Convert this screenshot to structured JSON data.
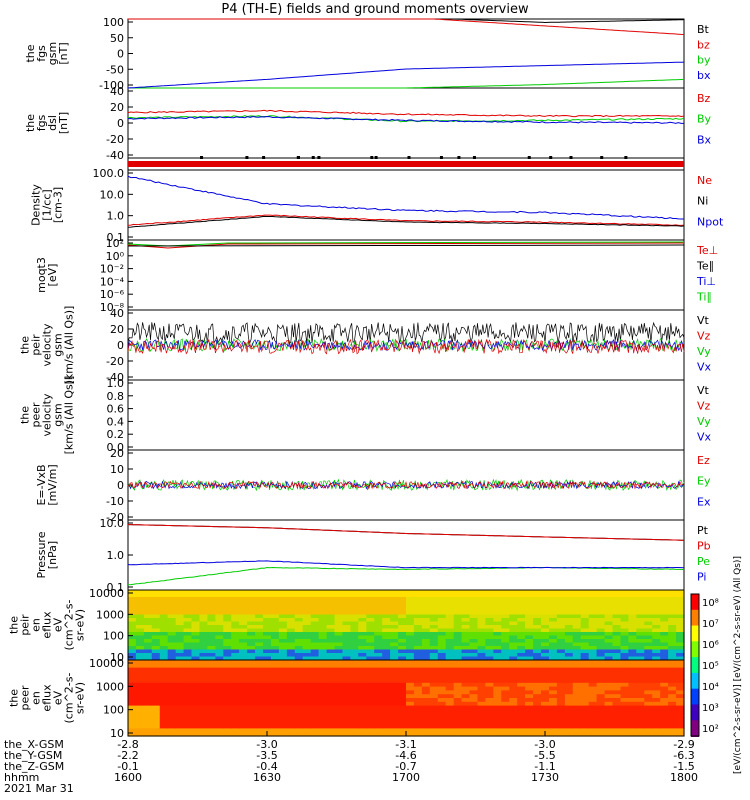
{
  "title": "P4 (TH-E) fields and ground moments overview",
  "panels": [
    {
      "id": "bgsm",
      "ylabel": [
        "the",
        "fgs",
        "gsm",
        "[nT]"
      ],
      "ticks": [
        "100",
        "50",
        "0",
        "-50",
        "-100"
      ],
      "legend": [
        {
          "t": "Bt",
          "c": "#000000"
        },
        {
          "t": "bz",
          "c": "#e00000"
        },
        {
          "t": "by",
          "c": "#00cc00"
        },
        {
          "t": "bx",
          "c": "#0000dd"
        }
      ]
    },
    {
      "id": "bdsl",
      "ylabel": [
        "the",
        "fgs",
        "dsl",
        "[nT]"
      ],
      "ticks": [
        "40",
        "20",
        "0",
        "-20",
        "-40"
      ],
      "legend": [
        {
          "t": "Bz",
          "c": "#e00000"
        },
        {
          "t": "By",
          "c": "#00cc00"
        },
        {
          "t": "Bx",
          "c": "#0000dd"
        }
      ]
    },
    {
      "id": "mode",
      "ylabel": [],
      "ticks": [],
      "legend": []
    },
    {
      "id": "dens",
      "ylabel": [
        "Density",
        "[1/cc]",
        "[cm-3]"
      ],
      "ticks": [
        "100.0",
        "10.0",
        "1.0",
        "0.1"
      ],
      "legend": [
        {
          "t": "Ne",
          "c": "#e00000"
        },
        {
          "t": "Ni",
          "c": "#000000"
        },
        {
          "t": "Npot",
          "c": "#0000dd"
        }
      ]
    },
    {
      "id": "temp",
      "ylabel": [
        "moqt3",
        "[eV]"
      ],
      "ticks": [
        "10²",
        "10⁰",
        "10⁻²",
        "10⁻⁴",
        "10⁻⁶",
        "10⁻⁸"
      ],
      "legend": [
        {
          "t": "Te⊥",
          "c": "#e00000"
        },
        {
          "t": "Te∥",
          "c": "#000000"
        },
        {
          "t": "Ti⊥",
          "c": "#0000dd"
        },
        {
          "t": "Ti∥",
          "c": "#00cc00"
        }
      ]
    },
    {
      "id": "vi",
      "ylabel": [
        "the",
        "peir",
        "velocity",
        "gsm",
        "[km/s (All Qs)]"
      ],
      "ticks": [
        "40",
        "20",
        "0",
        "-20",
        "-40"
      ],
      "legend": [
        {
          "t": "Vt",
          "c": "#000000"
        },
        {
          "t": "Vz",
          "c": "#e00000"
        },
        {
          "t": "Vy",
          "c": "#00cc00"
        },
        {
          "t": "Vx",
          "c": "#0000dd"
        }
      ]
    },
    {
      "id": "ve",
      "ylabel": [
        "the",
        "peer",
        "velocity",
        "gsm",
        "[km/s (All Qs)]"
      ],
      "ticks": [
        "1.0",
        "0.8",
        "0.6",
        "0.4",
        "0.2",
        "0.0"
      ],
      "legend": [
        {
          "t": "Vt",
          "c": "#000000"
        },
        {
          "t": "Vz",
          "c": "#e00000"
        },
        {
          "t": "Vy",
          "c": "#00cc00"
        },
        {
          "t": "Vx",
          "c": "#0000dd"
        }
      ]
    },
    {
      "id": "efield",
      "ylabel": [
        "E=-VxB",
        "[mV/m]"
      ],
      "ticks": [
        "20",
        "10",
        "0",
        "-10",
        "-20"
      ],
      "legend": [
        {
          "t": "Ez",
          "c": "#e00000"
        },
        {
          "t": "Ey",
          "c": "#00cc00"
        },
        {
          "t": "Ex",
          "c": "#0000dd"
        }
      ]
    },
    {
      "id": "press",
      "ylabel": [
        "Pressure",
        "[nPa]"
      ],
      "ticks": [
        "10.0",
        "1.0",
        "0.1"
      ],
      "legend": [
        {
          "t": "Pt",
          "c": "#000000"
        },
        {
          "t": "Pb",
          "c": "#e00000"
        },
        {
          "t": "Pe",
          "c": "#00cc00"
        },
        {
          "t": "Pi",
          "c": "#0000dd"
        }
      ]
    },
    {
      "id": "ispec",
      "ylabel": [
        "the",
        "peir",
        "en",
        "eflux",
        "eV",
        "(cm^2-s-",
        "sr-eV)"
      ],
      "ticks": [
        "10000",
        "1000",
        "100",
        "10"
      ],
      "legend": []
    },
    {
      "id": "espec",
      "ylabel": [
        "the",
        "peer",
        "en",
        "eflux",
        "eV",
        "(cm^2-s-",
        "sr-eV)"
      ],
      "ticks": [
        "10000",
        "1000",
        "100",
        "10"
      ],
      "legend": []
    }
  ],
  "colorbar": {
    "ticks": [
      "10⁸",
      "10⁷",
      "10⁶",
      "10⁵",
      "10⁴",
      "10³",
      "10²"
    ],
    "label": "[eV/(cm^2-s-sr-eV)] [eV/(cm^2-s-sr-eV) (All Qs)]"
  },
  "xaxis": {
    "rows": [
      {
        "label": "the_X-GSM",
        "vals": [
          "-2.8",
          "-3.0",
          "-3.1",
          "-3.0",
          "-2.9"
        ]
      },
      {
        "label": "the_Y-GSM",
        "vals": [
          "-2.2",
          "-3.5",
          "-4.6",
          "-5.5",
          "-6.3"
        ]
      },
      {
        "label": "the_Z-GSM",
        "vals": [
          "-0.1",
          "-0.4",
          "-0.7",
          "-1.1",
          "-1.5"
        ]
      },
      {
        "label": "hhmm",
        "vals": [
          "1600",
          "1630",
          "1700",
          "1730",
          "1800"
        ]
      }
    ],
    "date": "2021 Mar 31"
  },
  "chart_data": {
    "type": "line",
    "title": "P4 (TH-E) fields and ground moments overview",
    "x": [
      "1600",
      "1630",
      "1700",
      "1730",
      "1800"
    ],
    "series": [
      {
        "name": "Bt",
        "values": [
          150,
          125,
          105,
          90,
          98
        ]
      },
      {
        "name": "bz",
        "values": [
          150,
          125,
          105,
          80,
          55
        ]
      },
      {
        "name": "by",
        "values": [
          -105,
          -110,
          -100,
          -90,
          -75
        ]
      },
      {
        "name": "bx",
        "values": [
          -100,
          -75,
          -45,
          -35,
          -25
        ]
      },
      {
        "name": "Bz",
        "values": [
          12,
          14,
          10,
          8,
          8
        ]
      },
      {
        "name": "By",
        "values": [
          6,
          8,
          2,
          3,
          5
        ]
      },
      {
        "name": "Bx",
        "values": [
          5,
          7,
          3,
          1,
          0
        ]
      },
      {
        "name": "Ne",
        "values": [
          0.5,
          1.5,
          0.8,
          0.7,
          0.5
        ]
      },
      {
        "name": "Ni",
        "values": [
          0.4,
          1.3,
          0.7,
          0.6,
          0.45
        ]
      },
      {
        "name": "Npot",
        "values": [
          100,
          5,
          2.5,
          2,
          1
        ]
      },
      {
        "name": "Pt",
        "values": [
          25,
          18,
          10,
          7,
          5
        ]
      },
      {
        "name": "Pb",
        "values": [
          25,
          18,
          10,
          7,
          5
        ]
      },
      {
        "name": "Pe",
        "values": [
          0.05,
          0.3,
          0.25,
          0.3,
          0.25
        ]
      },
      {
        "name": "Pi",
        "values": [
          0.4,
          0.6,
          0.3,
          0.3,
          0.3
        ]
      }
    ]
  }
}
